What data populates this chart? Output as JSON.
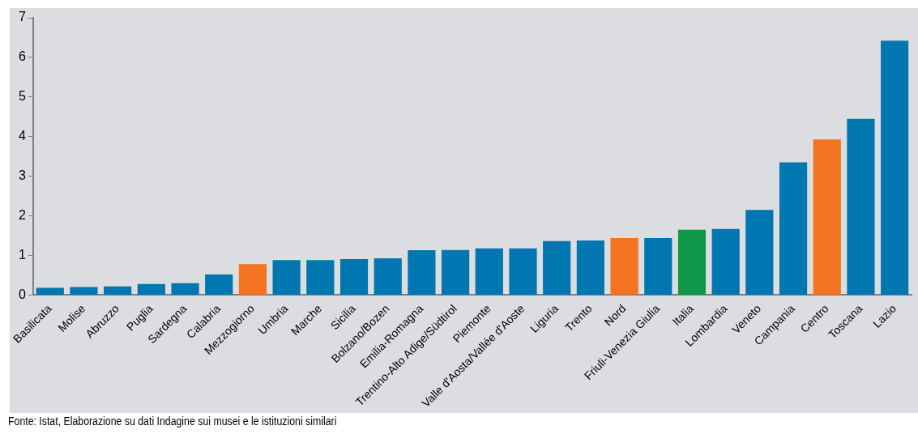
{
  "chart_data": {
    "type": "bar",
    "categories": [
      "Basilicata",
      "Molise",
      "Abruzzo",
      "Puglia",
      "Sardegna",
      "Calabria",
      "Mezzogiorno",
      "Umbria",
      "Marche",
      "Sicilia",
      "Bolzano/Bozen",
      "Emilia-Romagna",
      "Trentino-Alto Adige/Südtirol",
      "Piemonte",
      "Valle d'Aosta/Vallée d'Aoste",
      "Liguria",
      "Trento",
      "Nord",
      "Friuli-Venezia Giulia",
      "Italia",
      "Lombardia",
      "Veneto",
      "Campania",
      "Centro",
      "Toscana",
      "Lazio"
    ],
    "values": [
      0.18,
      0.2,
      0.22,
      0.28,
      0.3,
      0.52,
      0.78,
      0.88,
      0.88,
      0.91,
      0.93,
      1.13,
      1.14,
      1.18,
      1.18,
      1.36,
      1.38,
      1.44,
      1.44,
      1.65,
      1.67,
      2.15,
      3.35,
      3.93,
      4.45,
      6.42
    ],
    "colors": [
      "#0077b0",
      "#0077b0",
      "#0077b0",
      "#0077b0",
      "#0077b0",
      "#0077b0",
      "#f37321",
      "#0077b0",
      "#0077b0",
      "#0077b0",
      "#0077b0",
      "#0077b0",
      "#0077b0",
      "#0077b0",
      "#0077b0",
      "#0077b0",
      "#0077b0",
      "#f37321",
      "#0077b0",
      "#10984a",
      "#0077b0",
      "#0077b0",
      "#0077b0",
      "#f37321",
      "#0077b0",
      "#0077b0"
    ],
    "ylim": [
      0,
      7
    ],
    "yticks": [
      0,
      1,
      2,
      3,
      4,
      5,
      6,
      7
    ],
    "grid": false,
    "legend": false,
    "annotations": [
      "Fonte: Istat, Elaborazione su dati Indagine sui musei e le istituzioni similari"
    ]
  }
}
